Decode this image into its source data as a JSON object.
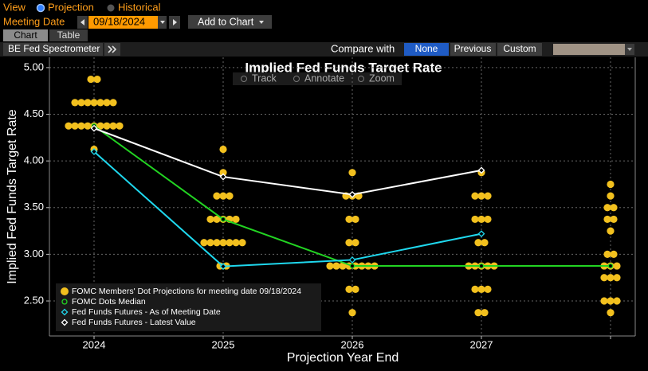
{
  "ui": {
    "view_label": "View",
    "view_options": [
      "Projection",
      "Historical"
    ],
    "meeting_label": "Meeting Date",
    "meeting_date": "09/18/2024",
    "add_button": "Add to Chart",
    "tabs": [
      "Chart",
      "Table"
    ],
    "toolbar_name": "BE Fed Spectrometer",
    "compare_label": "Compare with",
    "compare_options": [
      "None",
      "Previous",
      "Custom"
    ],
    "chart_tools": [
      "Track",
      "Annotate",
      "Zoom"
    ]
  },
  "chart_data": {
    "type": "dot-line",
    "title": "Implied Fed Funds Target Rate",
    "x_label": "Projection Year End",
    "y_label": "Implied Fed Funds Target Rate",
    "categories": [
      "2024",
      "2025",
      "2026",
      "2027",
      null
    ],
    "ylim": [
      2.125,
      5.11
    ],
    "yticks": [
      {
        "value": 2.5,
        "label": "2.50"
      },
      {
        "value": 3.0,
        "label": "3.00"
      },
      {
        "value": 3.5,
        "label": "3.50"
      },
      {
        "value": 4.0,
        "label": "4.00"
      },
      {
        "value": 4.5,
        "label": "4.50"
      },
      {
        "value": 5.0,
        "label": "5.00"
      }
    ],
    "grid": true,
    "dots": {
      "name": "FOMC Members' Dot Projections for meeting date 09/18/2024",
      "color": "#f2c01e",
      "values": [
        [
          4.875,
          4.875,
          4.625,
          4.625,
          4.625,
          4.625,
          4.625,
          4.625,
          4.625,
          4.375,
          4.375,
          4.375,
          4.375,
          4.375,
          4.375,
          4.375,
          4.375,
          4.375,
          4.125
        ],
        [
          4.125,
          3.875,
          3.625,
          3.625,
          3.625,
          3.375,
          3.375,
          3.375,
          3.375,
          3.375,
          3.125,
          3.125,
          3.125,
          3.125,
          3.125,
          3.125,
          3.125,
          2.875,
          2.875
        ],
        [
          3.875,
          3.625,
          3.625,
          3.625,
          3.375,
          3.375,
          3.125,
          3.125,
          2.875,
          2.875,
          2.875,
          2.875,
          2.875,
          2.875,
          2.875,
          2.875,
          2.625,
          2.625,
          2.375
        ],
        [
          3.875,
          3.625,
          3.625,
          3.625,
          3.375,
          3.375,
          3.375,
          3.125,
          3.125,
          2.875,
          2.875,
          2.875,
          2.875,
          2.875,
          2.625,
          2.625,
          2.625,
          2.375,
          2.375
        ],
        [
          3.75,
          3.625,
          3.5,
          3.5,
          3.375,
          3.375,
          3.25,
          3.0,
          3.0,
          2.875,
          2.875,
          2.875,
          2.75,
          2.75,
          2.75,
          2.5,
          2.5,
          2.5,
          2.375
        ]
      ]
    },
    "series": [
      {
        "name": "FOMC Dots Median",
        "color": "#22d422",
        "marker": "circle",
        "values": [
          4.375,
          3.375,
          2.875,
          2.875,
          2.875
        ]
      },
      {
        "name": "Fed Funds Futures - As of Meeting Date",
        "color": "#1fd8ee",
        "marker": "diamond",
        "values": [
          4.1,
          2.87,
          2.94,
          3.22,
          null
        ]
      },
      {
        "name": "Fed Funds Futures - Latest Value",
        "color": "#ffffff",
        "marker": "diamond",
        "values": [
          4.35,
          3.83,
          3.64,
          3.9,
          null
        ]
      }
    ]
  }
}
